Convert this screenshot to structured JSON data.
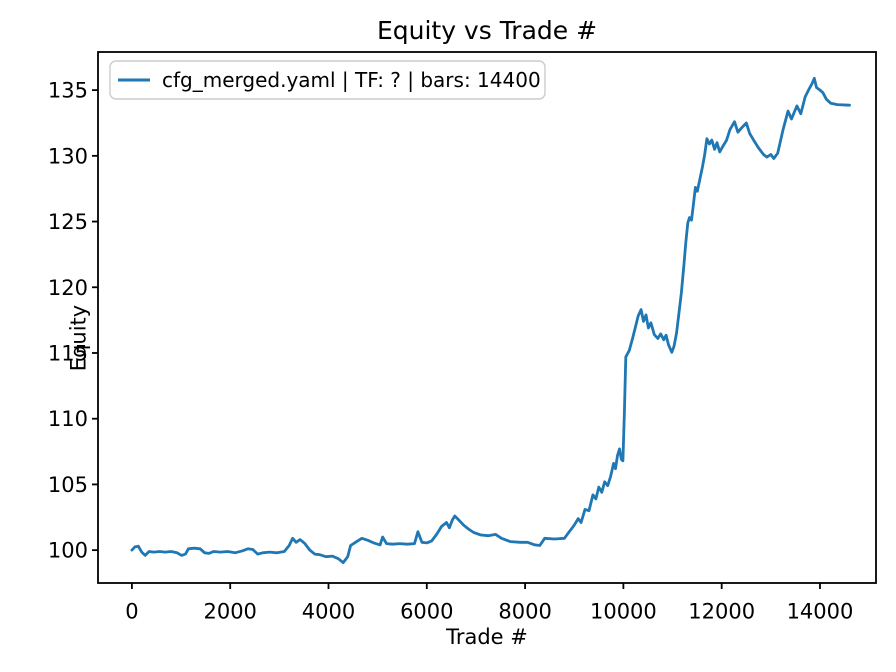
{
  "chart_data": {
    "type": "line",
    "title": "Equity vs Trade #",
    "xlabel": "Trade #",
    "ylabel": "Equity",
    "legend_position": "upper left",
    "grid": false,
    "background_color": "#ffffff",
    "axis_color": "#000000",
    "legend_edge_color": "#cccccc",
    "xlim": [
      -690,
      15140
    ],
    "ylim": [
      97.5,
      137.9
    ],
    "xticks": [
      0,
      2000,
      4000,
      6000,
      8000,
      10000,
      12000,
      14000
    ],
    "yticks": [
      100,
      105,
      110,
      115,
      120,
      125,
      130,
      135
    ],
    "series": [
      {
        "name": "cfg_merged.yaml | TF: ? | bars: 14400",
        "color": "#1f77b4",
        "points": [
          [
            0,
            100.0
          ],
          [
            60,
            100.25
          ],
          [
            130,
            100.3
          ],
          [
            200,
            99.85
          ],
          [
            270,
            99.6
          ],
          [
            350,
            99.9
          ],
          [
            450,
            99.85
          ],
          [
            560,
            99.9
          ],
          [
            680,
            99.85
          ],
          [
            800,
            99.9
          ],
          [
            920,
            99.8
          ],
          [
            1010,
            99.6
          ],
          [
            1090,
            99.7
          ],
          [
            1150,
            100.1
          ],
          [
            1270,
            100.15
          ],
          [
            1390,
            100.1
          ],
          [
            1480,
            99.8
          ],
          [
            1570,
            99.75
          ],
          [
            1660,
            99.9
          ],
          [
            1800,
            99.85
          ],
          [
            1950,
            99.9
          ],
          [
            2100,
            99.8
          ],
          [
            2250,
            99.95
          ],
          [
            2360,
            100.1
          ],
          [
            2460,
            100.05
          ],
          [
            2560,
            99.7
          ],
          [
            2660,
            99.8
          ],
          [
            2800,
            99.85
          ],
          [
            2950,
            99.8
          ],
          [
            3100,
            99.9
          ],
          [
            3200,
            100.35
          ],
          [
            3270,
            100.9
          ],
          [
            3340,
            100.6
          ],
          [
            3420,
            100.8
          ],
          [
            3520,
            100.5
          ],
          [
            3620,
            100.0
          ],
          [
            3720,
            99.7
          ],
          [
            3820,
            99.65
          ],
          [
            3950,
            99.5
          ],
          [
            4080,
            99.55
          ],
          [
            4200,
            99.35
          ],
          [
            4300,
            99.05
          ],
          [
            4390,
            99.5
          ],
          [
            4450,
            100.35
          ],
          [
            4550,
            100.6
          ],
          [
            4680,
            100.9
          ],
          [
            4800,
            100.75
          ],
          [
            4920,
            100.55
          ],
          [
            5050,
            100.4
          ],
          [
            5100,
            101.0
          ],
          [
            5180,
            100.5
          ],
          [
            5300,
            100.45
          ],
          [
            5450,
            100.5
          ],
          [
            5600,
            100.45
          ],
          [
            5750,
            100.5
          ],
          [
            5820,
            101.4
          ],
          [
            5900,
            100.6
          ],
          [
            6000,
            100.55
          ],
          [
            6100,
            100.7
          ],
          [
            6200,
            101.2
          ],
          [
            6300,
            101.8
          ],
          [
            6400,
            102.1
          ],
          [
            6460,
            101.7
          ],
          [
            6520,
            102.3
          ],
          [
            6570,
            102.6
          ],
          [
            6650,
            102.3
          ],
          [
            6750,
            101.9
          ],
          [
            6850,
            101.6
          ],
          [
            6950,
            101.35
          ],
          [
            7100,
            101.15
          ],
          [
            7250,
            101.1
          ],
          [
            7400,
            101.2
          ],
          [
            7520,
            100.9
          ],
          [
            7700,
            100.65
          ],
          [
            7900,
            100.6
          ],
          [
            8050,
            100.6
          ],
          [
            8200,
            100.4
          ],
          [
            8300,
            100.35
          ],
          [
            8400,
            100.9
          ],
          [
            8600,
            100.85
          ],
          [
            8800,
            100.9
          ],
          [
            8900,
            101.4
          ],
          [
            9000,
            101.9
          ],
          [
            9080,
            102.4
          ],
          [
            9140,
            102.1
          ],
          [
            9220,
            103.1
          ],
          [
            9300,
            103.0
          ],
          [
            9380,
            104.2
          ],
          [
            9440,
            103.9
          ],
          [
            9500,
            104.8
          ],
          [
            9560,
            104.4
          ],
          [
            9620,
            105.2
          ],
          [
            9680,
            104.9
          ],
          [
            9740,
            105.6
          ],
          [
            9800,
            106.6
          ],
          [
            9840,
            106.2
          ],
          [
            9880,
            107.2
          ],
          [
            9920,
            107.7
          ],
          [
            9960,
            106.9
          ],
          [
            9990,
            106.8
          ],
          [
            10020,
            110.5
          ],
          [
            10050,
            114.7
          ],
          [
            10120,
            115.2
          ],
          [
            10180,
            116.0
          ],
          [
            10240,
            116.9
          ],
          [
            10300,
            117.8
          ],
          [
            10360,
            118.3
          ],
          [
            10410,
            117.4
          ],
          [
            10460,
            117.9
          ],
          [
            10510,
            116.9
          ],
          [
            10560,
            117.3
          ],
          [
            10630,
            116.4
          ],
          [
            10700,
            116.1
          ],
          [
            10760,
            116.45
          ],
          [
            10820,
            116.0
          ],
          [
            10870,
            116.35
          ],
          [
            10920,
            115.6
          ],
          [
            10985,
            115.05
          ],
          [
            11030,
            115.5
          ],
          [
            11080,
            116.5
          ],
          [
            11130,
            118.0
          ],
          [
            11180,
            119.6
          ],
          [
            11230,
            121.6
          ],
          [
            11270,
            123.4
          ],
          [
            11310,
            124.9
          ],
          [
            11345,
            125.3
          ],
          [
            11385,
            125.1
          ],
          [
            11425,
            126.3
          ],
          [
            11465,
            127.6
          ],
          [
            11505,
            127.3
          ],
          [
            11555,
            128.2
          ],
          [
            11605,
            129.1
          ],
          [
            11655,
            130.1
          ],
          [
            11700,
            131.3
          ],
          [
            11750,
            130.9
          ],
          [
            11800,
            131.2
          ],
          [
            11855,
            130.5
          ],
          [
            11905,
            131.0
          ],
          [
            11960,
            130.3
          ],
          [
            12020,
            130.7
          ],
          [
            12100,
            131.2
          ],
          [
            12170,
            132.0
          ],
          [
            12260,
            132.6
          ],
          [
            12330,
            131.8
          ],
          [
            12400,
            132.1
          ],
          [
            12500,
            132.5
          ],
          [
            12570,
            131.7
          ],
          [
            12650,
            131.2
          ],
          [
            12750,
            130.6
          ],
          [
            12850,
            130.1
          ],
          [
            12920,
            129.9
          ],
          [
            13000,
            130.1
          ],
          [
            13060,
            129.8
          ],
          [
            13140,
            130.2
          ],
          [
            13250,
            132.0
          ],
          [
            13350,
            133.4
          ],
          [
            13420,
            132.8
          ],
          [
            13530,
            133.8
          ],
          [
            13610,
            133.2
          ],
          [
            13700,
            134.5
          ],
          [
            13780,
            135.1
          ],
          [
            13840,
            135.5
          ],
          [
            13885,
            135.9
          ],
          [
            13930,
            135.2
          ],
          [
            14000,
            135.0
          ],
          [
            14060,
            134.8
          ],
          [
            14130,
            134.3
          ],
          [
            14220,
            134.0
          ],
          [
            14350,
            133.9
          ],
          [
            14600,
            133.85
          ]
        ]
      }
    ]
  }
}
